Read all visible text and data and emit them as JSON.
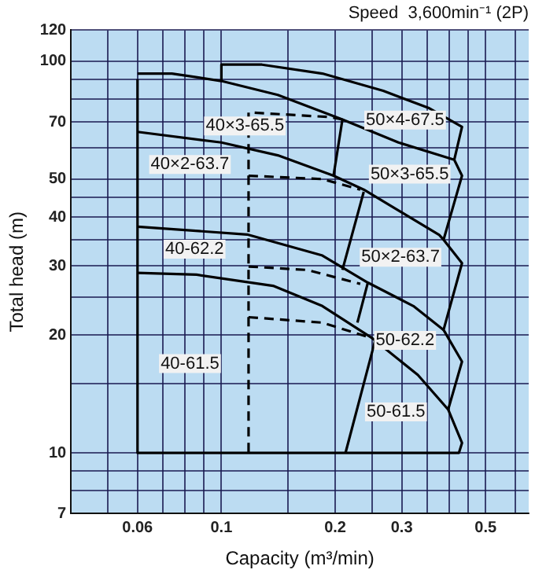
{
  "chart_data": {
    "type": "line",
    "title": "Speed  3,600min⁻¹ (2P)",
    "xlabel": "Capacity (m³/min)",
    "ylabel": "Total head (m)",
    "log": "xy",
    "grid": true,
    "legend": false,
    "marker": "none",
    "line_style": "solid",
    "xlim": [
      0.04,
      0.65
    ],
    "ylim": [
      7,
      120
    ],
    "xticks": [
      {
        "value": 0.05,
        "label": null
      },
      0.06,
      {
        "value": 0.07,
        "label": null
      },
      {
        "value": 0.08,
        "label": null
      },
      {
        "value": 0.09,
        "label": null
      },
      0.1,
      {
        "value": 0.15,
        "label": null
      },
      0.2,
      {
        "value": 0.25,
        "label": null
      },
      0.3,
      {
        "value": 0.35,
        "label": null
      },
      {
        "value": 0.4,
        "label": null
      },
      {
        "value": 0.45,
        "label": null
      },
      0.5,
      {
        "value": 0.6,
        "label": null
      }
    ],
    "yticks": [
      7,
      {
        "value": 8,
        "label": null
      },
      {
        "value": 9,
        "label": null
      },
      10,
      {
        "value": 15,
        "label": null
      },
      20,
      {
        "value": 25,
        "label": null
      },
      30,
      {
        "value": 35,
        "label": null
      },
      40,
      {
        "value": 45,
        "label": null
      },
      50,
      {
        "value": 60,
        "label": null
      },
      70,
      {
        "value": 80,
        "label": null
      },
      {
        "value": 90,
        "label": null
      },
      100,
      120
    ],
    "series": [
      {
        "color": "#000000",
        "x": [
          0.1,
          0.1,
          0.128,
          0.185,
          0.268,
          0.353,
          0.433,
          0.413
        ],
        "values": [
          89,
          98,
          98,
          93,
          84,
          76,
          68,
          56
        ]
      },
      {
        "color": "#000000",
        "x": [
          0.06,
          0.074,
          0.1,
          0.141,
          0.209,
          0.294,
          0.413,
          0.433,
          0.387,
          0.433,
          0.387,
          0.433,
          0.398,
          0.433,
          0.425,
          0.06,
          0.06
        ],
        "values": [
          93,
          93,
          89,
          82,
          71,
          62,
          56,
          51,
          35,
          30.5,
          20.6,
          17.1,
          12.9,
          10.6,
          10,
          10,
          90
        ]
      },
      {
        "color": "#000000",
        "x": [
          0.06,
          0.1,
          0.141,
          0.198,
          0.238,
          0.377,
          0.387
        ],
        "values": [
          66,
          62,
          57.5,
          51,
          47,
          36,
          35
        ]
      },
      {
        "color": "#000000",
        "x": [
          0.209,
          0.198
        ],
        "values": [
          71,
          51
        ]
      },
      {
        "color": "#000000",
        "line_style": "dashed",
        "x": [
          0.209,
          0.194,
          0.118,
          0.118
        ],
        "values": [
          71,
          72,
          74,
          10
        ]
      },
      {
        "color": "#000000",
        "line_style": "dashed",
        "x": [
          0.118,
          0.185,
          0.233
        ],
        "values": [
          51,
          50,
          47
        ]
      },
      {
        "color": "#000000",
        "x": [
          0.238,
          0.209
        ],
        "values": [
          46.4,
          29.3
        ]
      },
      {
        "color": "#000000",
        "x": [
          0.06,
          0.117,
          0.185,
          0.244,
          0.322,
          0.387
        ],
        "values": [
          37.8,
          36.1,
          31.9,
          27.2,
          23.7,
          20.6
        ]
      },
      {
        "color": "#000000",
        "x": [
          0.244,
          0.229
        ],
        "values": [
          27.2,
          21.5
        ]
      },
      {
        "color": "#000000",
        "line_style": "dashed",
        "x": [
          0.118,
          0.169,
          0.233
        ],
        "values": [
          29.9,
          29.3,
          27
        ]
      },
      {
        "color": "#000000",
        "x": [
          0.06,
          0.086,
          0.137,
          0.185,
          0.251,
          0.331,
          0.398
        ],
        "values": [
          28.8,
          28.5,
          26.7,
          23.7,
          19.6,
          15.8,
          12.9
        ]
      },
      {
        "color": "#000000",
        "x": [
          0.256,
          0.213
        ],
        "values": [
          19.6,
          10
        ]
      },
      {
        "color": "#000000",
        "line_style": "dashed",
        "x": [
          0.118,
          0.185,
          0.251
        ],
        "values": [
          22.2,
          21.5,
          19.6
        ]
      }
    ],
    "annotations": [
      "50×4-67.5",
      "40×3-65.5",
      "40×2-63.7",
      "50×3-65.5",
      "50×2-63.7",
      "40-62.2",
      "50-62.2",
      "40-61.5",
      "50-61.5"
    ]
  }
}
